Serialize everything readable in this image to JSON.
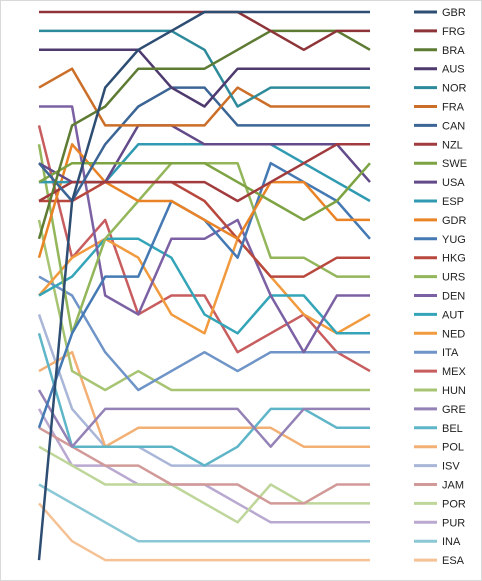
{
  "chart_data": {
    "type": "line",
    "title": "",
    "xlabel": "",
    "ylabel": "",
    "grid": false,
    "legend_position": "right",
    "x": [
      1,
      2,
      3,
      4,
      5,
      6,
      7,
      8,
      9,
      10,
      11
    ],
    "rank_range": [
      1,
      30
    ],
    "series": [
      {
        "name": "GBR",
        "color": "#2E4D73",
        "ranks": [
          30,
          11,
          5,
          3,
          2,
          1,
          1,
          1,
          1,
          1,
          1
        ]
      },
      {
        "name": "FRG",
        "color": "#8E3438",
        "ranks": [
          1,
          1,
          1,
          1,
          1,
          1,
          1,
          2,
          3,
          2,
          2
        ]
      },
      {
        "name": "BRA",
        "color": "#5E7B34",
        "ranks": [
          13,
          7,
          6,
          4,
          4,
          4,
          3,
          2,
          2,
          2,
          3
        ]
      },
      {
        "name": "AUS",
        "color": "#4E3A6E",
        "ranks": [
          3,
          3,
          3,
          3,
          5,
          6,
          4,
          4,
          4,
          4,
          4
        ]
      },
      {
        "name": "NOR",
        "color": "#2D8A9B",
        "ranks": [
          2,
          2,
          2,
          2,
          2,
          3,
          6,
          5,
          5,
          5,
          5
        ]
      },
      {
        "name": "FRA",
        "color": "#CB6E28",
        "ranks": [
          5,
          4,
          7,
          7,
          7,
          7,
          5,
          6,
          6,
          6,
          6
        ]
      },
      {
        "name": "CAN",
        "color": "#3B6595",
        "ranks": [
          9,
          11,
          8,
          6,
          5,
          5,
          7,
          7,
          7,
          7,
          7
        ]
      },
      {
        "name": "NZL",
        "color": "#A23B3D",
        "ranks": [
          11,
          10,
          10,
          10,
          10,
          10,
          11,
          10,
          9,
          8,
          8
        ]
      },
      {
        "name": "SWE",
        "color": "#7DA343",
        "ranks": [
          10,
          9,
          9,
          9,
          9,
          9,
          10,
          11,
          12,
          11,
          9
        ]
      },
      {
        "name": "USA",
        "color": "#634A89",
        "ranks": [
          9,
          10,
          10,
          7,
          7,
          8,
          8,
          8,
          8,
          8,
          10
        ]
      },
      {
        "name": "ESP",
        "color": "#2F9AB2",
        "ranks": [
          10,
          10,
          10,
          8,
          8,
          8,
          8,
          8,
          9,
          10,
          11
        ]
      },
      {
        "name": "GDR",
        "color": "#E98326",
        "ranks": [
          14,
          8,
          10,
          11,
          11,
          12,
          13,
          10,
          10,
          12,
          12
        ]
      },
      {
        "name": "YUG",
        "color": "#4479B3",
        "ranks": [
          23,
          18,
          15,
          15,
          11,
          12,
          14,
          9,
          10,
          11,
          13
        ]
      },
      {
        "name": "HKG",
        "color": "#B8483D",
        "ranks": [
          11,
          11,
          10,
          10,
          10,
          11,
          13,
          15,
          15,
          14,
          14
        ]
      },
      {
        "name": "URS",
        "color": "#93B65A",
        "ranks": [
          8,
          18,
          13,
          11,
          9,
          9,
          9,
          14,
          14,
          15,
          15
        ]
      },
      {
        "name": "DEN",
        "color": "#7B61A3",
        "ranks": [
          6,
          6,
          16,
          17,
          13,
          13,
          12,
          16,
          19,
          16,
          16
        ]
      },
      {
        "name": "AUT",
        "color": "#34A5B8",
        "ranks": [
          16,
          15,
          13,
          13,
          14,
          17,
          18,
          16,
          16,
          18,
          18
        ]
      },
      {
        "name": "NED",
        "color": "#F19A3E",
        "ranks": [
          16,
          14,
          13,
          14,
          17,
          18,
          13,
          15,
          17,
          18,
          17
        ]
      },
      {
        "name": "ITA",
        "color": "#6F94C7",
        "ranks": [
          15,
          16,
          19,
          21,
          20,
          19,
          20,
          19,
          19,
          19,
          19
        ]
      },
      {
        "name": "MEX",
        "color": "#C75D5F",
        "ranks": [
          7,
          14,
          12,
          17,
          16,
          16,
          19,
          18,
          17,
          19,
          20
        ]
      },
      {
        "name": "HUN",
        "color": "#A7C473",
        "ranks": [
          12,
          20,
          21,
          20,
          21,
          21,
          21,
          21,
          21,
          21,
          21
        ]
      },
      {
        "name": "GRE",
        "color": "#9482B6",
        "ranks": [
          21,
          24,
          22,
          22,
          22,
          22,
          22,
          24,
          22,
          22,
          22
        ]
      },
      {
        "name": "BEL",
        "color": "#5EB5C7",
        "ranks": [
          18,
          24,
          24,
          24,
          24,
          25,
          24,
          22,
          22,
          23,
          23
        ]
      },
      {
        "name": "POL",
        "color": "#F3B075",
        "ranks": [
          20,
          19,
          24,
          23,
          23,
          23,
          23,
          23,
          24,
          24,
          24
        ]
      },
      {
        "name": "ISV",
        "color": "#A9B6D8",
        "ranks": [
          17,
          22,
          24,
          24,
          25,
          25,
          25,
          25,
          25,
          25,
          25
        ]
      },
      {
        "name": "JAM",
        "color": "#D19A98",
        "ranks": [
          23,
          24,
          25,
          25,
          26,
          26,
          26,
          27,
          27,
          26,
          26
        ]
      },
      {
        "name": "POR",
        "color": "#BFD69A",
        "ranks": [
          24,
          25,
          26,
          26,
          26,
          27,
          28,
          26,
          27,
          27,
          27
        ]
      },
      {
        "name": "PUR",
        "color": "#B9A8CF",
        "ranks": [
          22,
          25,
          25,
          26,
          26,
          26,
          27,
          28,
          28,
          28,
          28
        ]
      },
      {
        "name": "INA",
        "color": "#8BC8D6",
        "ranks": [
          26,
          27,
          28,
          29,
          29,
          29,
          29,
          29,
          29,
          29,
          29
        ]
      },
      {
        "name": "ESA",
        "color": "#F5C295",
        "ranks": [
          27,
          29,
          30,
          30,
          30,
          30,
          30,
          30,
          30,
          30,
          30
        ]
      }
    ]
  }
}
